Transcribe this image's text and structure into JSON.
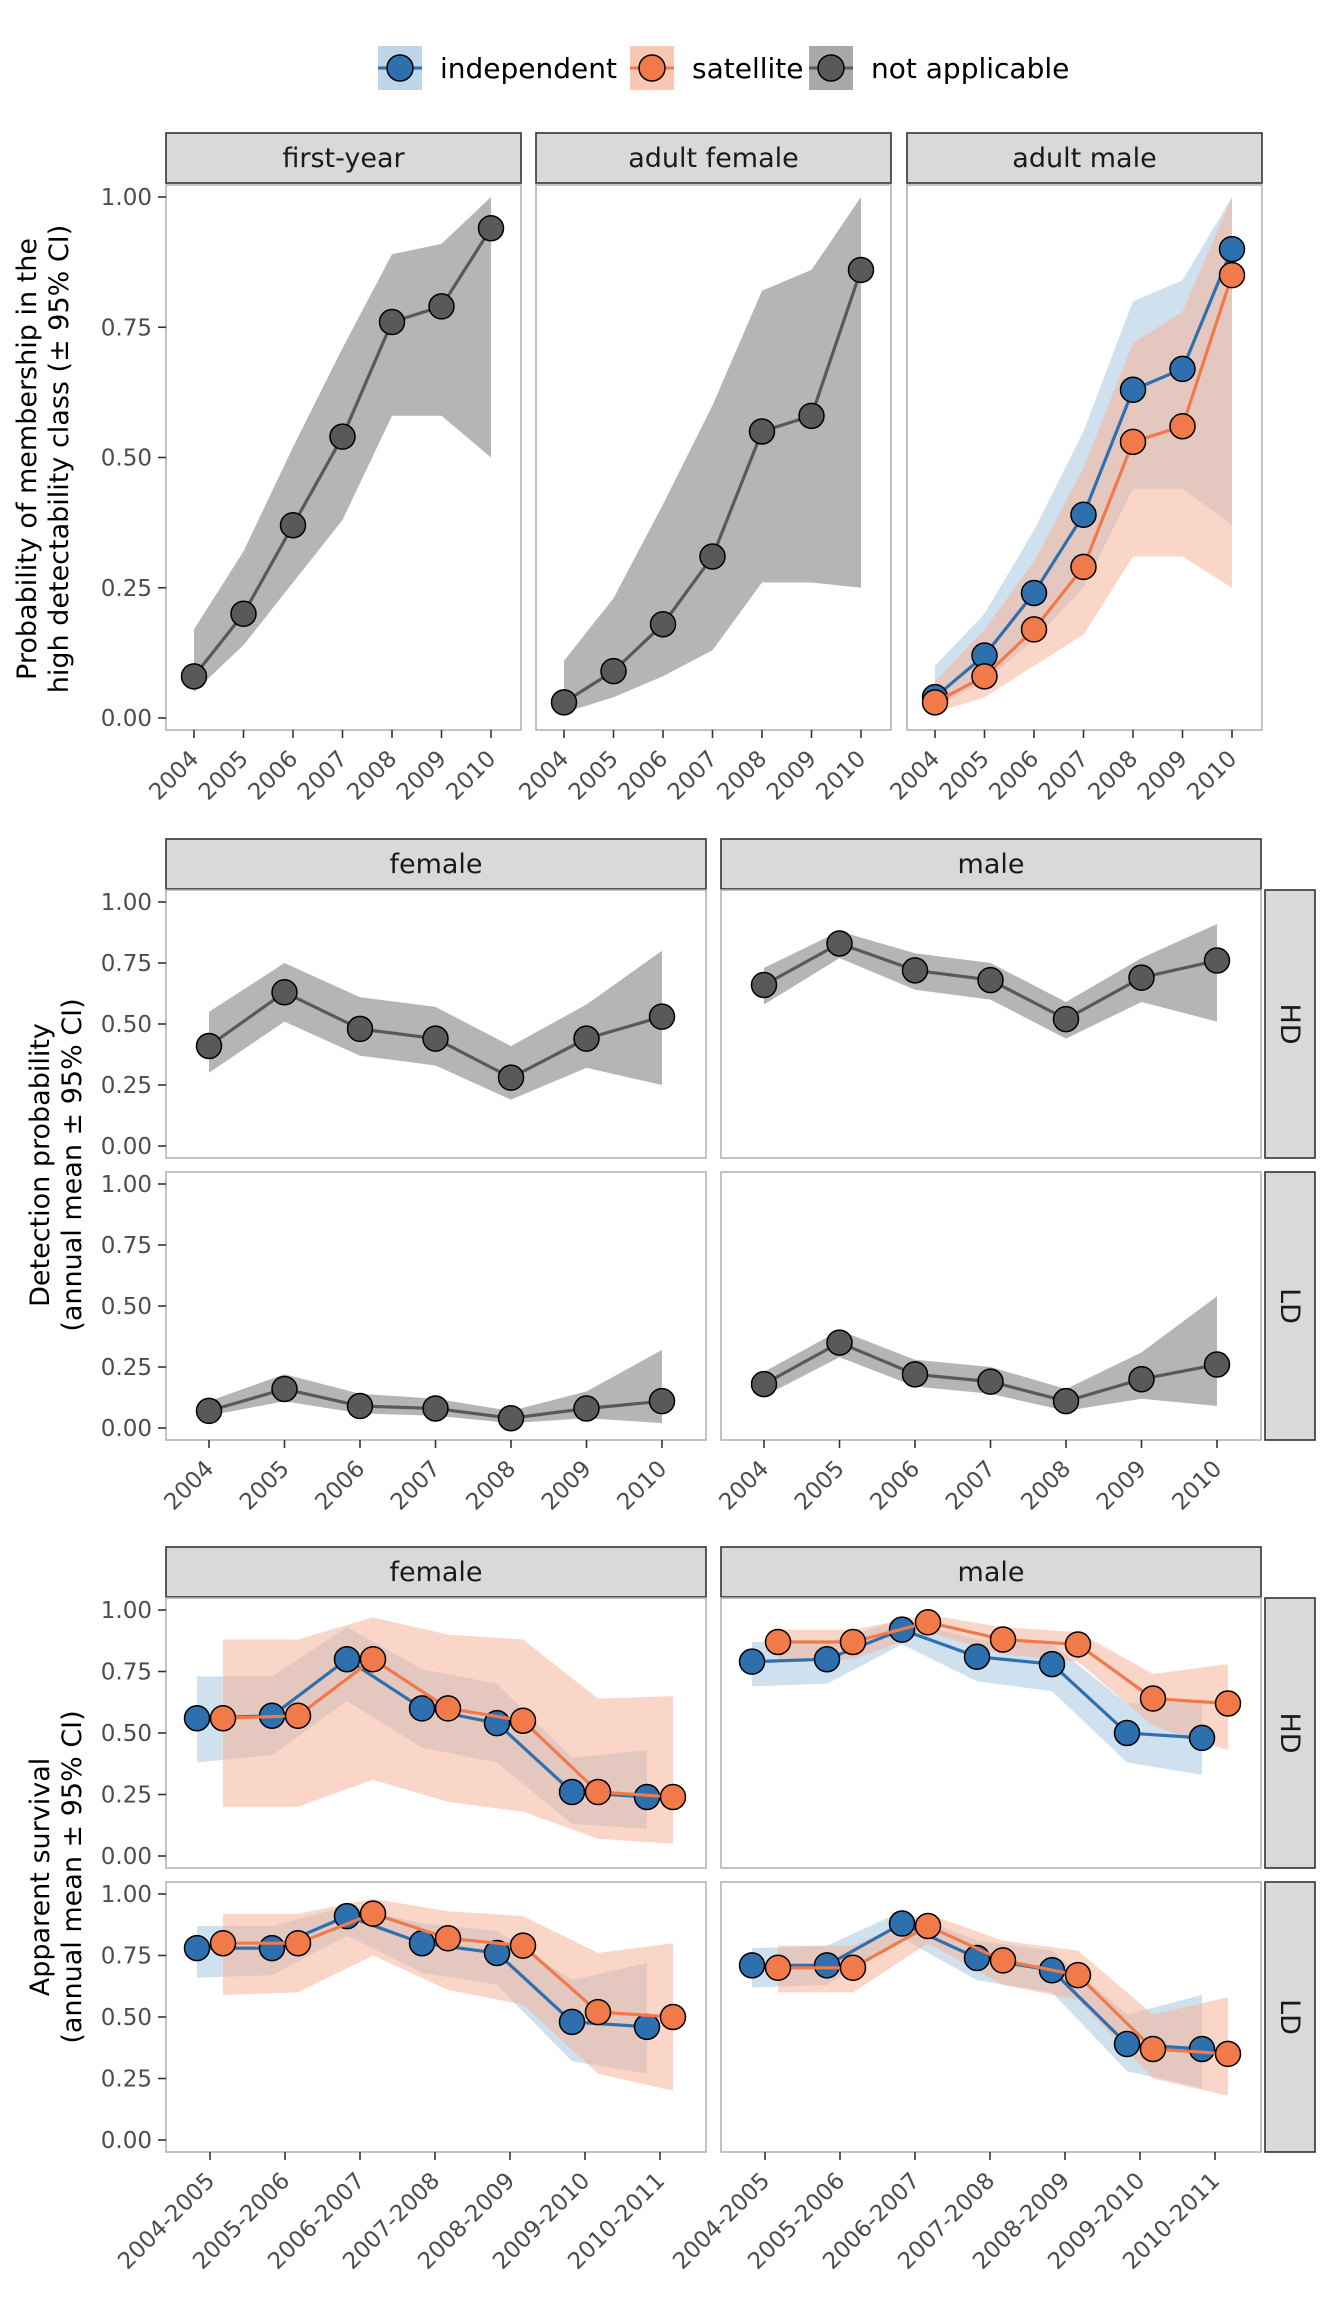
{
  "colors": {
    "independent": "#2e6fad",
    "satellite": "#f07a4a",
    "not_applicable": "#595959"
  },
  "legend": {
    "items": [
      {
        "key": "independent",
        "label": "independent"
      },
      {
        "key": "satellite",
        "label": "satellite"
      },
      {
        "key": "not_applicable",
        "label": "not applicable"
      }
    ]
  },
  "chart_data": [
    {
      "type": "line",
      "ylabel_line1": "Probability of membership in the",
      "ylabel_line2": "high detectability class (± 95% CI)",
      "ylim": [
        0,
        1
      ],
      "yticks": [
        "0.00",
        "0.25",
        "0.50",
        "0.75",
        "1.00"
      ],
      "categories": [
        "2004",
        "2005",
        "2006",
        "2007",
        "2008",
        "2009",
        "2010"
      ],
      "panels": [
        {
          "strip": "first-year",
          "series": [
            {
              "key": "not_applicable",
              "values": [
                0.08,
                0.2,
                0.37,
                0.54,
                0.76,
                0.79,
                0.94
              ],
              "lower": [
                0.05,
                0.14,
                0.26,
                0.38,
                0.58,
                0.58,
                0.5
              ],
              "upper": [
                0.17,
                0.32,
                0.52,
                0.71,
                0.89,
                0.91,
                1.0
              ]
            }
          ]
        },
        {
          "strip": "adult female",
          "series": [
            {
              "key": "not_applicable",
              "values": [
                0.03,
                0.09,
                0.18,
                0.31,
                0.55,
                0.58,
                0.86
              ],
              "lower": [
                0.01,
                0.04,
                0.08,
                0.13,
                0.26,
                0.26,
                0.25
              ],
              "upper": [
                0.11,
                0.23,
                0.41,
                0.6,
                0.82,
                0.86,
                1.0
              ]
            }
          ]
        },
        {
          "strip": "adult male",
          "series": [
            {
              "key": "independent",
              "values": [
                0.04,
                0.12,
                0.24,
                0.39,
                0.63,
                0.67,
                0.9
              ],
              "lower": [
                0.02,
                0.07,
                0.15,
                0.25,
                0.44,
                0.44,
                0.37
              ],
              "upper": [
                0.1,
                0.2,
                0.36,
                0.55,
                0.8,
                0.84,
                1.0
              ]
            },
            {
              "key": "satellite",
              "values": [
                0.03,
                0.08,
                0.17,
                0.29,
                0.53,
                0.56,
                0.85
              ],
              "lower": [
                0.01,
                0.04,
                0.1,
                0.16,
                0.31,
                0.31,
                0.25
              ],
              "upper": [
                0.07,
                0.17,
                0.3,
                0.48,
                0.72,
                0.78,
                1.0
              ]
            }
          ]
        }
      ]
    },
    {
      "type": "line",
      "ylabel_line1": "Detection probability",
      "ylabel_line2": "(annual mean ± 95% CI)",
      "ylim": [
        0,
        1
      ],
      "yticks": [
        "0.00",
        "0.25",
        "0.50",
        "0.75",
        "1.00"
      ],
      "categories": [
        "2004",
        "2005",
        "2006",
        "2007",
        "2008",
        "2009",
        "2010"
      ],
      "col_strips": [
        "female",
        "male"
      ],
      "row_strips": [
        "HD",
        "LD"
      ],
      "panels": [
        {
          "col": "female",
          "row": "HD",
          "series": [
            {
              "key": "not_applicable",
              "values": [
                0.41,
                0.63,
                0.48,
                0.44,
                0.28,
                0.44,
                0.53
              ],
              "lower": [
                0.3,
                0.51,
                0.37,
                0.33,
                0.19,
                0.32,
                0.25
              ],
              "upper": [
                0.55,
                0.75,
                0.61,
                0.57,
                0.41,
                0.58,
                0.8
              ]
            }
          ]
        },
        {
          "col": "male",
          "row": "HD",
          "series": [
            {
              "key": "not_applicable",
              "values": [
                0.66,
                0.83,
                0.72,
                0.68,
                0.52,
                0.69,
                0.76
              ],
              "lower": [
                0.58,
                0.77,
                0.64,
                0.6,
                0.44,
                0.59,
                0.51
              ],
              "upper": [
                0.73,
                0.88,
                0.79,
                0.75,
                0.59,
                0.77,
                0.91
              ]
            }
          ]
        },
        {
          "col": "female",
          "row": "LD",
          "series": [
            {
              "key": "not_applicable",
              "values": [
                0.07,
                0.16,
                0.09,
                0.08,
                0.04,
                0.08,
                0.11
              ],
              "lower": [
                0.05,
                0.11,
                0.06,
                0.05,
                0.02,
                0.04,
                0.02
              ],
              "upper": [
                0.11,
                0.22,
                0.14,
                0.12,
                0.07,
                0.15,
                0.32
              ]
            }
          ]
        },
        {
          "col": "male",
          "row": "LD",
          "series": [
            {
              "key": "not_applicable",
              "values": [
                0.18,
                0.35,
                0.22,
                0.19,
                0.11,
                0.2,
                0.26
              ],
              "lower": [
                0.13,
                0.29,
                0.17,
                0.14,
                0.07,
                0.12,
                0.09
              ],
              "upper": [
                0.23,
                0.4,
                0.28,
                0.25,
                0.16,
                0.31,
                0.54
              ]
            }
          ]
        }
      ]
    },
    {
      "type": "line",
      "ylabel_line1": "Apparent survival",
      "ylabel_line2": "(annual mean ± 95% CI)",
      "ylim": [
        0,
        1
      ],
      "yticks": [
        "0.00",
        "0.25",
        "0.50",
        "0.75",
        "1.00"
      ],
      "categories": [
        "2004-2005",
        "2005-2006",
        "2006-2007",
        "2007-2008",
        "2008-2009",
        "2009-2010",
        "2010-2011"
      ],
      "col_strips": [
        "female",
        "male"
      ],
      "row_strips": [
        "HD",
        "LD"
      ],
      "panels": [
        {
          "col": "female",
          "row": "HD",
          "series": [
            {
              "key": "independent",
              "values": [
                0.56,
                0.57,
                0.8,
                0.6,
                0.54,
                0.26,
                0.24
              ],
              "lower": [
                0.38,
                0.41,
                0.63,
                0.44,
                0.38,
                0.13,
                0.11
              ],
              "upper": [
                0.73,
                0.73,
                0.93,
                0.76,
                0.7,
                0.4,
                0.43
              ]
            },
            {
              "key": "satellite",
              "values": [
                0.56,
                0.57,
                0.8,
                0.6,
                0.55,
                0.26,
                0.24
              ],
              "lower": [
                0.2,
                0.2,
                0.31,
                0.22,
                0.18,
                0.07,
                0.05
              ],
              "upper": [
                0.88,
                0.88,
                0.97,
                0.9,
                0.88,
                0.64,
                0.65
              ]
            }
          ]
        },
        {
          "col": "male",
          "row": "HD",
          "series": [
            {
              "key": "independent",
              "values": [
                0.79,
                0.8,
                0.92,
                0.81,
                0.78,
                0.5,
                0.48
              ],
              "lower": [
                0.69,
                0.7,
                0.86,
                0.71,
                0.67,
                0.38,
                0.33
              ],
              "upper": [
                0.87,
                0.87,
                0.96,
                0.88,
                0.86,
                0.62,
                0.63
              ]
            },
            {
              "key": "satellite",
              "values": [
                0.87,
                0.87,
                0.95,
                0.88,
                0.86,
                0.64,
                0.62
              ],
              "lower": [
                0.8,
                0.8,
                0.91,
                0.82,
                0.79,
                0.53,
                0.43
              ],
              "upper": [
                0.92,
                0.92,
                0.98,
                0.93,
                0.91,
                0.74,
                0.78
              ]
            }
          ]
        },
        {
          "col": "female",
          "row": "LD",
          "series": [
            {
              "key": "independent",
              "values": [
                0.78,
                0.78,
                0.91,
                0.8,
                0.76,
                0.48,
                0.46
              ],
              "lower": [
                0.66,
                0.67,
                0.83,
                0.68,
                0.63,
                0.32,
                0.27
              ],
              "upper": [
                0.87,
                0.87,
                0.95,
                0.88,
                0.85,
                0.65,
                0.72
              ]
            },
            {
              "key": "satellite",
              "values": [
                0.8,
                0.8,
                0.92,
                0.82,
                0.79,
                0.52,
                0.5
              ],
              "lower": [
                0.59,
                0.6,
                0.75,
                0.61,
                0.55,
                0.27,
                0.2
              ],
              "upper": [
                0.92,
                0.92,
                0.98,
                0.93,
                0.91,
                0.76,
                0.8
              ]
            }
          ]
        },
        {
          "col": "male",
          "row": "LD",
          "series": [
            {
              "key": "independent",
              "values": [
                0.71,
                0.71,
                0.88,
                0.74,
                0.69,
                0.39,
                0.37
              ],
              "lower": [
                0.62,
                0.63,
                0.82,
                0.65,
                0.6,
                0.28,
                0.21
              ],
              "upper": [
                0.78,
                0.79,
                0.93,
                0.81,
                0.77,
                0.51,
                0.59
              ]
            },
            {
              "key": "satellite",
              "values": [
                0.7,
                0.7,
                0.87,
                0.73,
                0.67,
                0.37,
                0.35
              ],
              "lower": [
                0.6,
                0.6,
                0.8,
                0.63,
                0.57,
                0.25,
                0.18
              ],
              "upper": [
                0.79,
                0.79,
                0.92,
                0.81,
                0.77,
                0.51,
                0.58
              ]
            }
          ]
        }
      ]
    }
  ]
}
